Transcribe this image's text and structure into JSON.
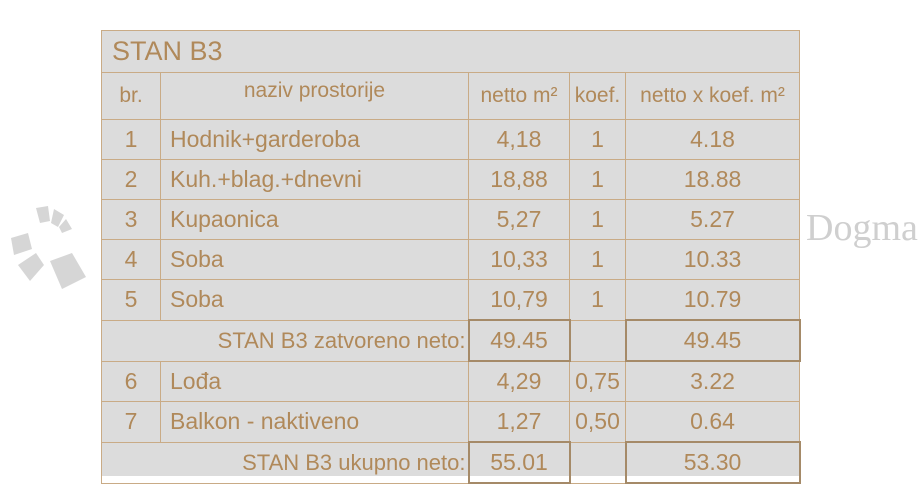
{
  "title": "STAN B3",
  "headers": [
    "br.",
    "naziv prostorije",
    "netto m²",
    "koef.",
    "netto x koef. m²"
  ],
  "rows": [
    {
      "no": "1",
      "name": "Hodnik+garderoba",
      "netto": "4,18",
      "koef": "1",
      "total": "4.18"
    },
    {
      "no": "2",
      "name": "Kuh.+blag.+dnevni",
      "netto": "18,88",
      "koef": "1",
      "total": "18.88"
    },
    {
      "no": "3",
      "name": "Kupaonica",
      "netto": "5,27",
      "koef": "1",
      "total": "5.27"
    },
    {
      "no": "4",
      "name": "Soba",
      "netto": "10,33",
      "koef": "1",
      "total": "10.33"
    },
    {
      "no": "5",
      "name": "Soba",
      "netto": "10,79",
      "koef": "1",
      "total": "10.79"
    }
  ],
  "subtotal": {
    "label": "STAN B3 zatvoreno neto:",
    "netto": "49.45",
    "total": "49.45"
  },
  "rows2": [
    {
      "no": "6",
      "name": "Lođa",
      "netto": "4,29",
      "koef": "0,75",
      "total": "3.22"
    },
    {
      "no": "7",
      "name": "Balkon - naktiveno",
      "netto": "1,27",
      "koef": "0,50",
      "total": "0.64"
    }
  ],
  "grand": {
    "label": "STAN B3 ukupno neto:",
    "netto": "55.01",
    "total": "53.30"
  },
  "watermark": "Dogma",
  "colors": {
    "text": "#b0895a",
    "border": "#c9ab86",
    "background": "#dcdcdc"
  }
}
